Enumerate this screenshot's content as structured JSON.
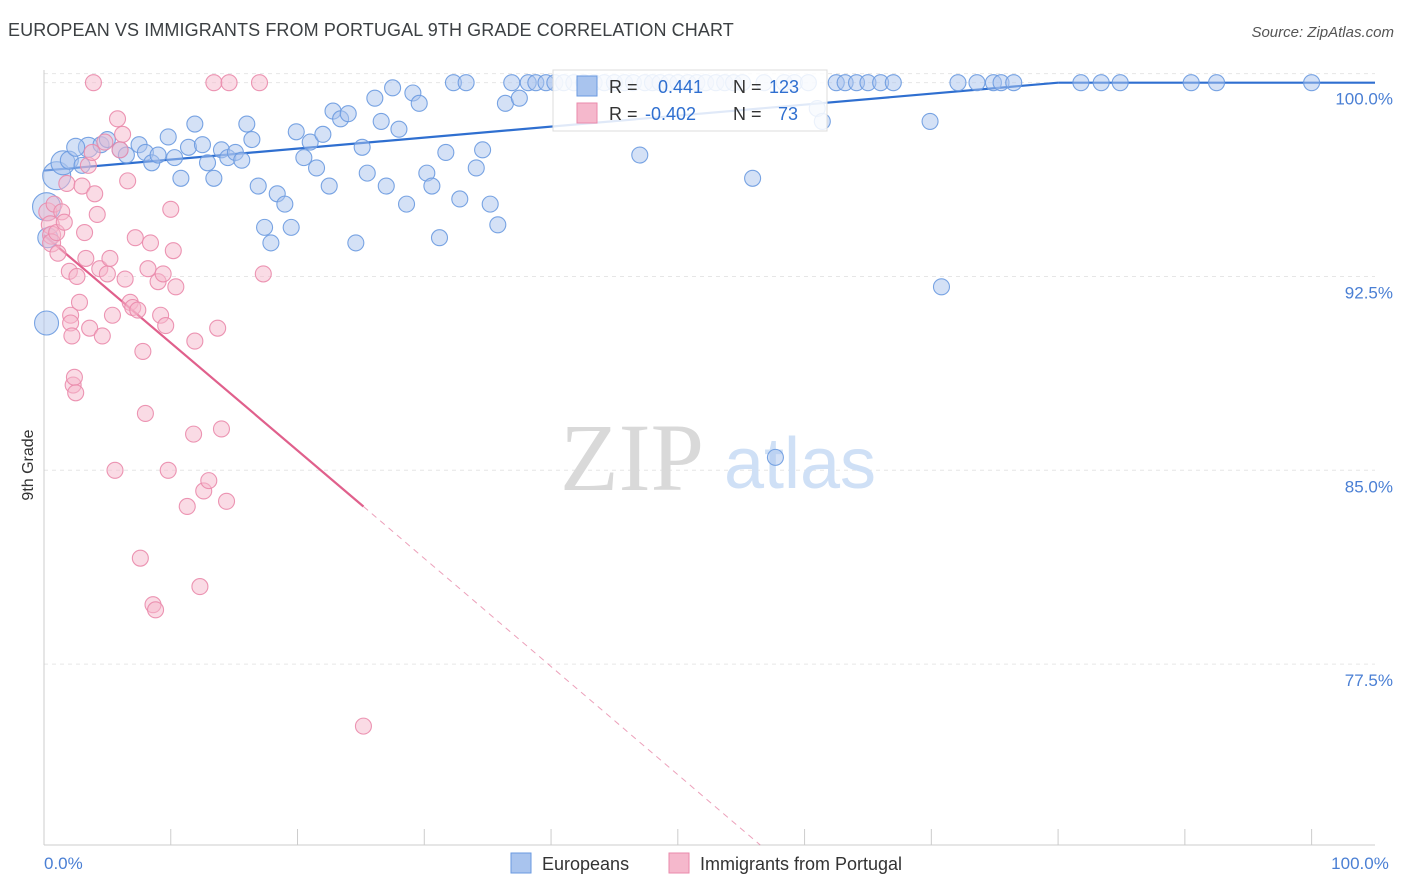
{
  "title": "EUROPEAN VS IMMIGRANTS FROM PORTUGAL 9TH GRADE CORRELATION CHART",
  "source": "Source: ZipAtlas.com",
  "watermark": {
    "zip": "ZIP",
    "atlas": "atlas"
  },
  "colors": {
    "europeans_fill": "#a9c4ee",
    "europeans_stroke": "#6a9ae0",
    "europeans_line": "#2f6fd0",
    "portugal_fill": "#f5b8cc",
    "portugal_stroke": "#ea8aab",
    "portugal_line": "#e0608c",
    "tick_text": "#4a7fd4",
    "grid": "#e6e6e6"
  },
  "legend": {
    "rows": [
      {
        "r_label": "R =",
        "r_value": "0.441",
        "n_label": "N =",
        "n_value": "123"
      },
      {
        "r_label": "R =",
        "r_value": "-0.402",
        "n_label": "N =",
        "n_value": "73"
      }
    ]
  },
  "chart_data": {
    "type": "scatter",
    "xlabel": "",
    "ylabel": "9th Grade",
    "xlim": [
      0,
      105
    ],
    "ylim": [
      70.5,
      100.8
    ],
    "x_tick_labels": [
      {
        "value": 0,
        "label": "0.0%"
      },
      {
        "value": 100,
        "label": "100.0%"
      }
    ],
    "y_ticks": [
      {
        "value": 100.0,
        "label": "100.0%"
      },
      {
        "value": 92.5,
        "label": "92.5%"
      },
      {
        "value": 85.0,
        "label": "85.0%"
      },
      {
        "value": 77.5,
        "label": "77.5%"
      }
    ],
    "grid": true,
    "legend_position": "top-center",
    "series": [
      {
        "name": "Europeans",
        "stats": {
          "R": 0.441,
          "N": 123
        },
        "trend": {
          "x0": 0,
          "y0": 96.6,
          "x1": 80,
          "y1": 100.0
        },
        "points": [
          [
            0.2,
            95.2,
            14
          ],
          [
            0.2,
            90.7,
            12
          ],
          [
            0.3,
            94.0,
            10
          ],
          [
            1.0,
            96.4,
            14
          ],
          [
            1.5,
            96.9,
            12
          ],
          [
            3.5,
            97.5,
            10
          ],
          [
            2.0,
            97.0,
            9
          ],
          [
            2.5,
            97.5,
            9
          ],
          [
            3.0,
            96.8,
            8
          ],
          [
            4.5,
            97.6,
            8
          ],
          [
            5.0,
            97.8,
            8
          ],
          [
            6.0,
            97.4,
            8
          ],
          [
            6.5,
            97.2,
            8
          ],
          [
            7.5,
            97.6,
            8
          ],
          [
            8.0,
            97.3,
            8
          ],
          [
            8.5,
            96.9,
            8
          ],
          [
            9.0,
            97.2,
            8
          ],
          [
            9.8,
            97.9,
            8
          ],
          [
            10.3,
            97.1,
            8
          ],
          [
            10.8,
            96.3,
            8
          ],
          [
            11.4,
            97.5,
            8
          ],
          [
            11.9,
            98.4,
            8
          ],
          [
            12.5,
            97.6,
            8
          ],
          [
            12.9,
            96.9,
            8
          ],
          [
            13.4,
            96.3,
            8
          ],
          [
            14.0,
            97.4,
            8
          ],
          [
            14.5,
            97.1,
            8
          ],
          [
            15.1,
            97.3,
            8
          ],
          [
            15.6,
            97.0,
            8
          ],
          [
            16.0,
            98.4,
            8
          ],
          [
            16.4,
            97.8,
            8
          ],
          [
            16.9,
            96.0,
            8
          ],
          [
            17.4,
            94.4,
            8
          ],
          [
            17.9,
            93.8,
            8
          ],
          [
            18.4,
            95.7,
            8
          ],
          [
            19.0,
            95.3,
            8
          ],
          [
            19.5,
            94.4,
            8
          ],
          [
            19.9,
            98.1,
            8
          ],
          [
            20.5,
            97.1,
            8
          ],
          [
            21.0,
            97.7,
            8
          ],
          [
            21.5,
            96.7,
            8
          ],
          [
            22.0,
            98.0,
            8
          ],
          [
            22.5,
            96.0,
            8
          ],
          [
            22.8,
            98.9,
            8
          ],
          [
            23.4,
            98.6,
            8
          ],
          [
            24.0,
            98.8,
            8
          ],
          [
            24.6,
            93.8,
            8
          ],
          [
            25.1,
            97.5,
            8
          ],
          [
            25.5,
            96.5,
            8
          ],
          [
            26.1,
            99.4,
            8
          ],
          [
            26.6,
            98.5,
            8
          ],
          [
            27.0,
            96.0,
            8
          ],
          [
            27.5,
            99.8,
            8
          ],
          [
            28.0,
            98.2,
            8
          ],
          [
            28.6,
            95.3,
            8
          ],
          [
            29.1,
            99.6,
            8
          ],
          [
            29.6,
            99.2,
            8
          ],
          [
            30.2,
            96.5,
            8
          ],
          [
            30.6,
            96.0,
            8
          ],
          [
            31.2,
            94.0,
            8
          ],
          [
            31.7,
            97.3,
            8
          ],
          [
            32.3,
            100.0,
            8
          ],
          [
            32.8,
            95.5,
            8
          ],
          [
            33.3,
            100.0,
            8
          ],
          [
            34.1,
            96.7,
            8
          ],
          [
            34.6,
            97.4,
            8
          ],
          [
            35.2,
            95.3,
            8
          ],
          [
            35.8,
            94.5,
            8
          ],
          [
            36.4,
            99.2,
            8
          ],
          [
            36.9,
            100.0,
            8
          ],
          [
            37.5,
            99.4,
            8
          ],
          [
            38.2,
            100.0,
            8
          ],
          [
            38.8,
            100.0,
            8
          ],
          [
            39.6,
            100.0,
            8
          ],
          [
            40.3,
            100.0,
            8
          ],
          [
            41.0,
            100.0,
            8
          ],
          [
            41.8,
            100.0,
            8
          ],
          [
            42.6,
            100.0,
            8
          ],
          [
            43.4,
            100.0,
            8
          ],
          [
            44.2,
            100.0,
            8
          ],
          [
            45.0,
            100.0,
            8
          ],
          [
            45.8,
            100.0,
            8
          ],
          [
            46.5,
            100.0,
            8
          ],
          [
            47.0,
            97.2,
            8
          ],
          [
            47.4,
            100.0,
            8
          ],
          [
            48.0,
            100.0,
            8
          ],
          [
            48.6,
            100.0,
            8
          ],
          [
            49.3,
            100.0,
            8
          ],
          [
            50.0,
            100.0,
            8
          ],
          [
            50.8,
            100.0,
            8
          ],
          [
            51.5,
            100.0,
            8
          ],
          [
            52.2,
            100.0,
            8
          ],
          [
            53.0,
            100.0,
            8
          ],
          [
            53.7,
            100.0,
            8
          ],
          [
            54.4,
            100.0,
            8
          ],
          [
            55.1,
            100.0,
            8
          ],
          [
            55.9,
            96.3,
            8
          ],
          [
            56.8,
            100.0,
            8
          ],
          [
            57.7,
            85.5,
            8
          ],
          [
            58.4,
            100.0,
            8
          ],
          [
            59.2,
            100.0,
            8
          ],
          [
            60.3,
            100.0,
            8
          ],
          [
            61.0,
            99.0,
            8
          ],
          [
            61.4,
            98.5,
            8
          ],
          [
            62.5,
            100.0,
            8
          ],
          [
            63.2,
            100.0,
            8
          ],
          [
            64.1,
            100.0,
            8
          ],
          [
            65.0,
            100.0,
            8
          ],
          [
            66.0,
            100.0,
            8
          ],
          [
            67.0,
            100.0,
            8
          ],
          [
            69.9,
            98.5,
            8
          ],
          [
            70.8,
            92.1,
            8
          ],
          [
            72.1,
            100.0,
            8
          ],
          [
            73.6,
            100.0,
            8
          ],
          [
            74.9,
            100.0,
            8
          ],
          [
            75.5,
            100.0,
            8
          ],
          [
            76.5,
            100.0,
            8
          ],
          [
            81.8,
            100.0,
            8
          ],
          [
            83.4,
            100.0,
            8
          ],
          [
            84.9,
            100.0,
            8
          ],
          [
            90.5,
            100.0,
            8
          ],
          [
            92.5,
            100.0,
            8
          ],
          [
            100.0,
            100.0,
            8
          ]
        ]
      },
      {
        "name": "Immigrants from Portugal",
        "stats": {
          "R": -0.402,
          "N": 73
        },
        "trend": {
          "x0": 0,
          "y0": 94.1,
          "x1": 25.2,
          "y1": 83.6
        },
        "trend_dashed": {
          "x0": 25.2,
          "y0": 83.6,
          "x1": 56.5,
          "y1": 70.5
        },
        "points": [
          [
            0.3,
            95.0,
            9
          ],
          [
            0.5,
            94.5,
            9
          ],
          [
            0.6,
            94.1,
            9
          ],
          [
            0.6,
            93.8,
            9
          ],
          [
            0.8,
            95.3,
            8
          ],
          [
            1.0,
            94.2,
            8
          ],
          [
            1.1,
            93.4,
            8
          ],
          [
            1.4,
            95.0,
            8
          ],
          [
            1.6,
            94.6,
            8
          ],
          [
            1.8,
            96.1,
            8
          ],
          [
            2.0,
            92.7,
            8
          ],
          [
            2.1,
            91.0,
            8
          ],
          [
            2.1,
            90.7,
            8
          ],
          [
            2.2,
            90.2,
            8
          ],
          [
            2.3,
            88.3,
            8
          ],
          [
            2.4,
            88.6,
            8
          ],
          [
            2.5,
            88.0,
            8
          ],
          [
            2.6,
            92.5,
            8
          ],
          [
            2.8,
            91.5,
            8
          ],
          [
            3.0,
            96.0,
            8
          ],
          [
            3.2,
            94.2,
            8
          ],
          [
            3.3,
            93.2,
            8
          ],
          [
            3.5,
            96.8,
            8
          ],
          [
            3.6,
            90.5,
            8
          ],
          [
            3.8,
            97.3,
            8
          ],
          [
            4.0,
            95.7,
            8
          ],
          [
            4.2,
            94.9,
            8
          ],
          [
            4.4,
            92.8,
            8
          ],
          [
            4.6,
            90.2,
            8
          ],
          [
            4.8,
            97.7,
            8
          ],
          [
            5.0,
            92.6,
            8
          ],
          [
            5.2,
            93.2,
            8
          ],
          [
            5.4,
            91.0,
            8
          ],
          [
            5.6,
            85.0,
            8
          ],
          [
            5.8,
            98.6,
            8
          ],
          [
            6.0,
            97.4,
            8
          ],
          [
            6.2,
            98.0,
            8
          ],
          [
            6.4,
            92.4,
            8
          ],
          [
            6.6,
            96.2,
            8
          ],
          [
            6.8,
            91.5,
            8
          ],
          [
            7.0,
            91.3,
            8
          ],
          [
            7.2,
            94.0,
            8
          ],
          [
            7.4,
            91.2,
            8
          ],
          [
            7.6,
            81.6,
            8
          ],
          [
            7.8,
            89.6,
            8
          ],
          [
            8.0,
            87.2,
            8
          ],
          [
            8.2,
            92.8,
            8
          ],
          [
            8.4,
            93.8,
            8
          ],
          [
            8.6,
            79.8,
            8
          ],
          [
            8.8,
            79.6,
            8
          ],
          [
            9.0,
            92.3,
            8
          ],
          [
            9.2,
            91.0,
            8
          ],
          [
            9.4,
            92.6,
            8
          ],
          [
            9.6,
            90.6,
            8
          ],
          [
            9.8,
            85.0,
            8
          ],
          [
            10.0,
            95.1,
            8
          ],
          [
            10.2,
            93.5,
            8
          ],
          [
            10.4,
            92.1,
            8
          ],
          [
            11.3,
            83.6,
            8
          ],
          [
            11.8,
            86.4,
            8
          ],
          [
            11.9,
            90.0,
            8
          ],
          [
            12.3,
            80.5,
            8
          ],
          [
            12.6,
            84.2,
            8
          ],
          [
            13.0,
            84.6,
            8
          ],
          [
            13.4,
            100.0,
            8
          ],
          [
            13.7,
            90.5,
            8
          ],
          [
            14.0,
            86.6,
            8
          ],
          [
            14.4,
            83.8,
            8
          ],
          [
            14.6,
            100.0,
            8
          ],
          [
            17.0,
            100.0,
            8
          ],
          [
            17.3,
            92.6,
            8
          ],
          [
            25.2,
            75.1,
            8
          ],
          [
            3.9,
            100.0,
            8
          ]
        ]
      }
    ]
  }
}
